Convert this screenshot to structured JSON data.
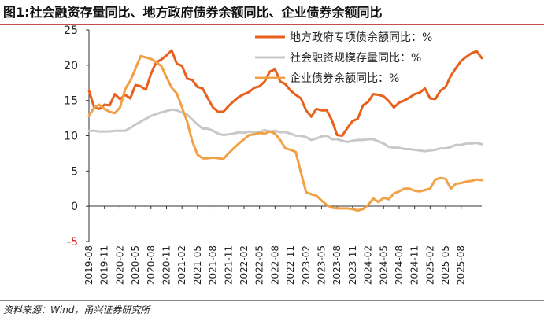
{
  "header": {
    "title": "图1:社会融资存量同比、地方政府债券余额同比、企业债券余额同比"
  },
  "footer": {
    "source": "资料来源：Wind，甬兴证券研究所"
  },
  "chart_data": {
    "type": "line",
    "title": "图1:社会融资存量同比、地方政府债券余额同比、企业债券余额同比",
    "xlabel": "",
    "ylabel": "",
    "ylim": [
      -5,
      25
    ],
    "yticks": [
      "-5",
      "0",
      "5",
      "10",
      "15",
      "20",
      "25"
    ],
    "ytick_values": [
      -5,
      0,
      5,
      10,
      15,
      20,
      25
    ],
    "grid": false,
    "legend_position": "top-right",
    "x_ticks": [
      "2019-08",
      "2019-11",
      "2020-02",
      "2020-05",
      "2020-08",
      "2020-11",
      "2021-02",
      "2021-05",
      "2021-08",
      "2021-11",
      "2022-02",
      "2022-05",
      "2022-08",
      "2022-11",
      "2023-02",
      "2023-05",
      "2023-08",
      "2023-11",
      "2024-02",
      "2024-05",
      "2024-08",
      "2024-11",
      "2025-02",
      "2025-05",
      "2025-08"
    ],
    "series": [
      {
        "name": "地方政府专项债余额同比：%",
        "color": "#e8601c",
        "width": 3,
        "values": [
          16.4,
          14.0,
          13.8,
          14.4,
          14.3,
          15.9,
          15.2,
          15.8,
          15.3,
          17.2,
          17.0,
          16.5,
          18.8,
          20.4,
          20.8,
          21.4,
          22.1,
          20.2,
          19.9,
          18.1,
          17.9,
          16.9,
          16.7,
          15.3,
          14.0,
          13.4,
          13.4,
          14.2,
          14.9,
          15.5,
          15.9,
          16.2,
          16.8,
          17.0,
          17.7,
          19.1,
          19.4,
          17.7,
          17.3,
          16.4,
          15.8,
          15.3,
          13.6,
          12.7,
          13.8,
          13.6,
          13.6,
          12.2,
          10.1,
          10.0,
          11.1,
          12.1,
          12.4,
          14.3,
          14.8,
          15.9,
          15.8,
          15.6,
          14.9,
          14.0,
          14.7,
          15.0,
          15.4,
          15.9,
          16.1,
          16.7,
          15.3,
          15.2,
          16.4,
          16.9,
          18.5,
          19.6,
          20.6,
          21.2,
          21.7,
          22.0,
          21.0
        ]
      },
      {
        "name": "社会融资规模存量同比：%",
        "color": "#c8c8c8",
        "width": 3,
        "values": [
          10.7,
          10.7,
          10.6,
          10.6,
          10.6,
          10.7,
          10.7,
          10.7,
          11.1,
          11.6,
          12.0,
          12.4,
          12.8,
          13.1,
          13.3,
          13.5,
          13.7,
          13.6,
          13.3,
          13.0,
          12.3,
          11.6,
          11.0,
          11.0,
          10.7,
          10.3,
          10.1,
          10.2,
          10.3,
          10.5,
          10.4,
          10.6,
          10.5,
          10.5,
          10.8,
          10.6,
          10.7,
          10.5,
          10.5,
          10.3,
          10.0,
          10.0,
          9.8,
          9.4,
          9.6,
          9.9,
          10.0,
          9.5,
          9.5,
          9.3,
          9.1,
          9.3,
          9.4,
          9.4,
          9.5,
          9.5,
          9.2,
          8.9,
          8.4,
          8.3,
          8.3,
          8.1,
          8.1,
          8.0,
          7.9,
          7.8,
          7.9,
          8.0,
          8.2,
          8.2,
          8.4,
          8.7,
          8.7,
          8.9,
          8.9,
          9.0,
          8.8
        ]
      },
      {
        "name": "企业债券余额同比：%",
        "color": "#f2a045",
        "width": 3,
        "values": [
          12.8,
          14.0,
          14.4,
          13.8,
          13.4,
          13.2,
          14.0,
          16.6,
          17.8,
          19.5,
          21.3,
          21.1,
          20.9,
          20.4,
          19.9,
          18.3,
          16.8,
          16.0,
          14.0,
          12.0,
          9.2,
          7.3,
          6.8,
          6.8,
          6.9,
          6.8,
          6.7,
          7.5,
          8.2,
          8.9,
          9.5,
          10.1,
          10.2,
          10.4,
          10.3,
          10.6,
          10.3,
          9.4,
          8.2,
          8.0,
          7.7,
          4.8,
          2.0,
          1.7,
          1.5,
          0.8,
          0.2,
          -0.2,
          -0.3,
          -0.3,
          -0.3,
          -0.4,
          -0.6,
          -0.4,
          0.2,
          1.1,
          0.6,
          1.2,
          1.0,
          1.8,
          2.1,
          2.5,
          2.5,
          2.2,
          2.1,
          2.3,
          2.5,
          3.8,
          4.0,
          3.9,
          2.5,
          3.2,
          3.3,
          3.5,
          3.6,
          3.8,
          3.7
        ]
      }
    ]
  }
}
